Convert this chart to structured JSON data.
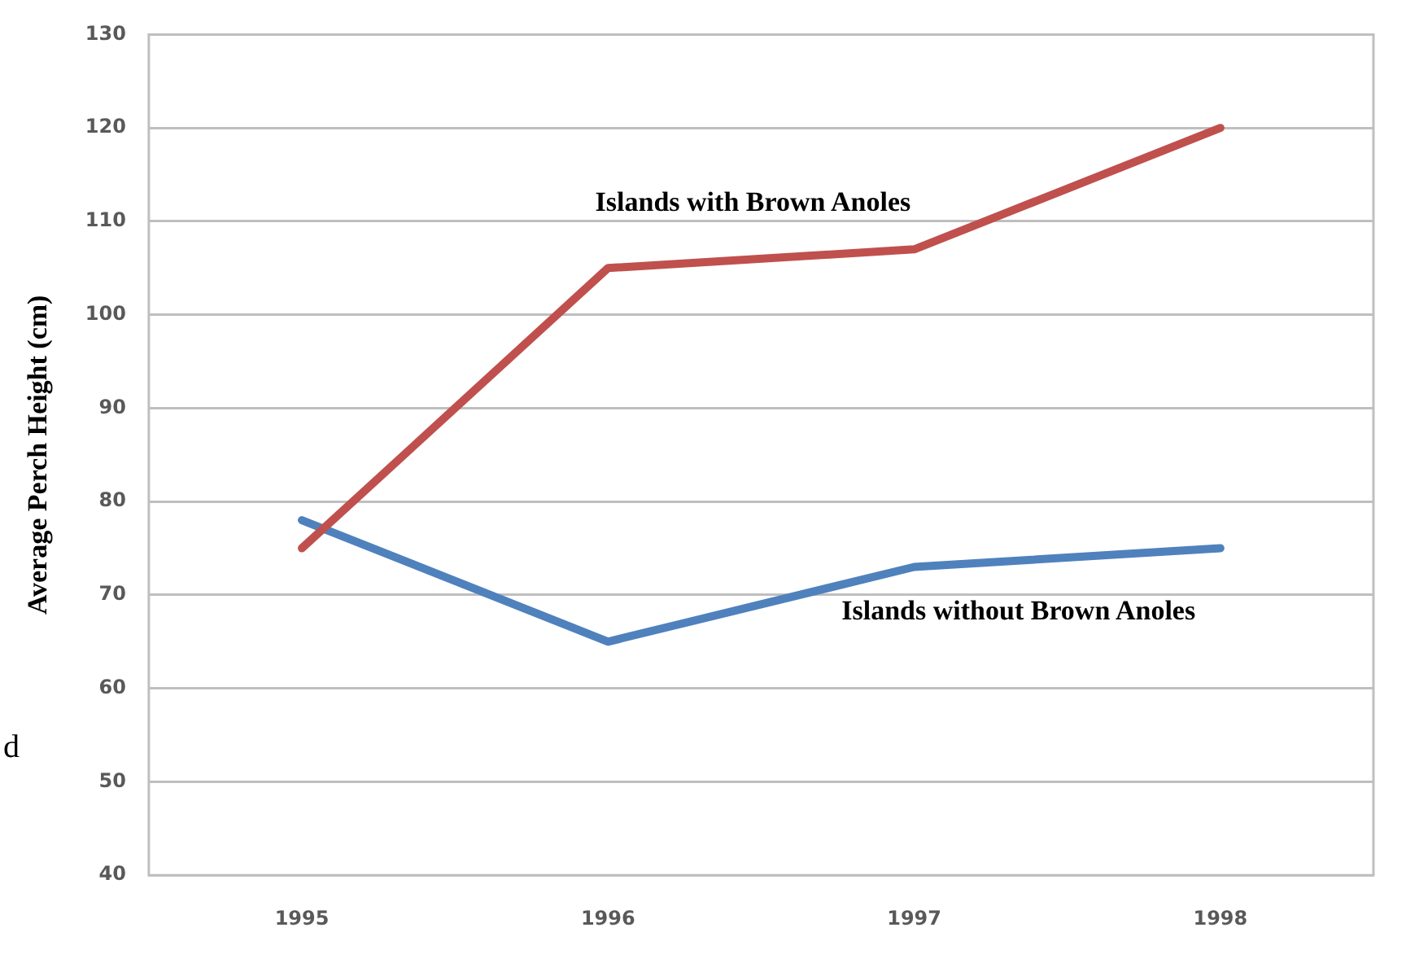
{
  "chart_data": {
    "type": "line",
    "ylabel": "Average Perch Height (cm)",
    "categories": [
      "1995",
      "1996",
      "1997",
      "1998"
    ],
    "series": [
      {
        "name": "Islands with Brown Anoles",
        "color": "#c0504d",
        "values": [
          75,
          105,
          107,
          120
        ]
      },
      {
        "name": "Islands without Brown Anoles",
        "color": "#4f81bd",
        "values": [
          78,
          65,
          73,
          75
        ]
      }
    ],
    "ylim": [
      40,
      130
    ],
    "yticks": [
      40,
      50,
      60,
      70,
      80,
      90,
      100,
      110,
      120,
      130
    ],
    "grid": "y",
    "legend": false,
    "marker": "none",
    "line_style": "solid",
    "annotations": [
      "d"
    ]
  }
}
